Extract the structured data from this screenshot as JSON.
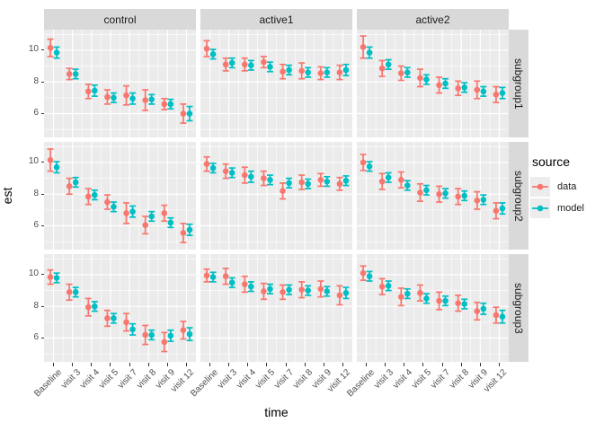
{
  "chart_data": {
    "type": "scatter",
    "subtype": "pointrange-with-errorbars-facet-grid",
    "title": "",
    "xlabel": "time",
    "ylabel": "est",
    "x_categories": [
      "Baseline",
      "visit 3",
      "visit 4",
      "visit 5",
      "visit 7",
      "visit 8",
      "visit 9",
      "visit 12"
    ],
    "y_ticks": [
      6,
      8,
      10
    ],
    "y_minor_ticks": [
      5,
      7,
      9,
      11
    ],
    "ylim": [
      4.5,
      11.3
    ],
    "grid": "on",
    "legend_position": "right",
    "facet_cols": [
      "control",
      "active1",
      "active2"
    ],
    "facet_rows": [
      "subgroup1",
      "subgroup2",
      "subgroup3"
    ],
    "legend": {
      "title": "source",
      "entries": [
        {
          "label": "data",
          "color": "#F8766D"
        },
        {
          "label": "model",
          "color": "#00BFC4"
        }
      ]
    },
    "colors": {
      "panel_bg": "#EBEBEB",
      "strip_bg": "#D9D9D9",
      "grid": "#FFFFFF",
      "axis_text": "#4d4d4d",
      "tick": "#333333"
    },
    "panels": [
      {
        "col": "control",
        "row": "subgroup1",
        "series": [
          {
            "name": "data",
            "values": [
              10.15,
              8.5,
              7.4,
              7.05,
              7.15,
              6.85,
              6.6,
              6.0
            ],
            "err": [
              0.55,
              0.35,
              0.45,
              0.45,
              0.6,
              0.65,
              0.35,
              0.6
            ]
          },
          {
            "name": "model",
            "values": [
              9.85,
              8.5,
              7.45,
              7.0,
              6.95,
              6.9,
              6.6,
              6.0
            ],
            "err": [
              0.35,
              0.3,
              0.35,
              0.3,
              0.35,
              0.3,
              0.3,
              0.45
            ]
          }
        ]
      },
      {
        "col": "active1",
        "row": "subgroup1",
        "series": [
          {
            "name": "data",
            "values": [
              10.1,
              9.1,
              9.1,
              9.25,
              8.65,
              8.7,
              8.55,
              8.6
            ],
            "err": [
              0.5,
              0.4,
              0.4,
              0.35,
              0.45,
              0.5,
              0.4,
              0.45
            ]
          },
          {
            "name": "model",
            "values": [
              9.75,
              9.2,
              9.05,
              8.95,
              8.75,
              8.6,
              8.6,
              8.75
            ],
            "err": [
              0.3,
              0.3,
              0.3,
              0.3,
              0.3,
              0.3,
              0.3,
              0.35
            ]
          }
        ]
      },
      {
        "col": "active2",
        "row": "subgroup1",
        "series": [
          {
            "name": "data",
            "values": [
              10.2,
              8.85,
              8.55,
              8.25,
              7.8,
              7.6,
              7.5,
              7.2
            ],
            "err": [
              0.7,
              0.5,
              0.45,
              0.55,
              0.5,
              0.45,
              0.55,
              0.5
            ]
          },
          {
            "name": "model",
            "values": [
              9.85,
              9.1,
              8.6,
              8.15,
              7.9,
              7.65,
              7.4,
              7.3
            ],
            "err": [
              0.35,
              0.3,
              0.3,
              0.3,
              0.3,
              0.3,
              0.3,
              0.35
            ]
          }
        ]
      },
      {
        "col": "control",
        "row": "subgroup2",
        "series": [
          {
            "name": "data",
            "values": [
              10.15,
              8.5,
              7.85,
              7.5,
              6.8,
              6.05,
              6.8,
              5.55
            ],
            "err": [
              0.7,
              0.5,
              0.5,
              0.45,
              0.65,
              0.55,
              0.5,
              0.6
            ]
          },
          {
            "name": "model",
            "values": [
              9.7,
              8.75,
              7.95,
              7.2,
              6.9,
              6.6,
              6.2,
              5.75
            ],
            "err": [
              0.35,
              0.3,
              0.3,
              0.3,
              0.35,
              0.3,
              0.3,
              0.35
            ]
          }
        ]
      },
      {
        "col": "active1",
        "row": "subgroup2",
        "series": [
          {
            "name": "data",
            "values": [
              9.9,
              9.45,
              9.2,
              9.0,
              8.2,
              8.75,
              8.9,
              8.65
            ],
            "err": [
              0.45,
              0.45,
              0.5,
              0.45,
              0.5,
              0.45,
              0.4,
              0.4
            ]
          },
          {
            "name": "model",
            "values": [
              9.65,
              9.35,
              9.1,
              8.9,
              8.7,
              8.65,
              8.8,
              8.85
            ],
            "err": [
              0.3,
              0.3,
              0.35,
              0.3,
              0.3,
              0.3,
              0.3,
              0.3
            ]
          }
        ]
      },
      {
        "col": "active2",
        "row": "subgroup2",
        "series": [
          {
            "name": "data",
            "values": [
              10.0,
              8.8,
              8.9,
              8.1,
              8.0,
              7.85,
              7.6,
              6.95
            ],
            "err": [
              0.5,
              0.5,
              0.5,
              0.55,
              0.5,
              0.5,
              0.55,
              0.5
            ]
          },
          {
            "name": "model",
            "values": [
              9.75,
              9.05,
              8.55,
              8.25,
              8.05,
              7.9,
              7.65,
              7.1
            ],
            "err": [
              0.3,
              0.3,
              0.3,
              0.3,
              0.3,
              0.3,
              0.3,
              0.35
            ]
          }
        ]
      },
      {
        "col": "control",
        "row": "subgroup3",
        "series": [
          {
            "name": "data",
            "values": [
              9.85,
              8.9,
              7.95,
              7.25,
              7.0,
              6.2,
              5.75,
              6.5
            ],
            "err": [
              0.45,
              0.5,
              0.55,
              0.5,
              0.55,
              0.6,
              0.6,
              0.55
            ]
          },
          {
            "name": "model",
            "values": [
              9.8,
              8.9,
              8.0,
              7.25,
              6.55,
              6.2,
              6.15,
              6.25
            ],
            "err": [
              0.3,
              0.3,
              0.3,
              0.3,
              0.35,
              0.3,
              0.35,
              0.4
            ]
          }
        ]
      },
      {
        "col": "active1",
        "row": "subgroup3",
        "series": [
          {
            "name": "data",
            "values": [
              9.95,
              9.9,
              9.4,
              8.95,
              8.9,
              9.05,
              9.1,
              8.7
            ],
            "err": [
              0.4,
              0.5,
              0.5,
              0.5,
              0.45,
              0.5,
              0.5,
              0.6
            ]
          },
          {
            "name": "model",
            "values": [
              9.85,
              9.5,
              9.25,
              9.1,
              9.05,
              9.0,
              8.95,
              8.85
            ],
            "err": [
              0.3,
              0.3,
              0.3,
              0.3,
              0.3,
              0.3,
              0.3,
              0.35
            ]
          }
        ]
      },
      {
        "col": "active2",
        "row": "subgroup3",
        "series": [
          {
            "name": "data",
            "values": [
              10.1,
              9.25,
              8.6,
              8.85,
              8.35,
              8.2,
              7.7,
              7.45
            ],
            "err": [
              0.45,
              0.5,
              0.55,
              0.5,
              0.55,
              0.5,
              0.55,
              0.5
            ]
          },
          {
            "name": "model",
            "values": [
              9.9,
              9.3,
              8.8,
              8.5,
              8.35,
              8.15,
              7.85,
              7.35
            ],
            "err": [
              0.3,
              0.3,
              0.3,
              0.3,
              0.3,
              0.3,
              0.35,
              0.4
            ]
          }
        ]
      }
    ]
  }
}
